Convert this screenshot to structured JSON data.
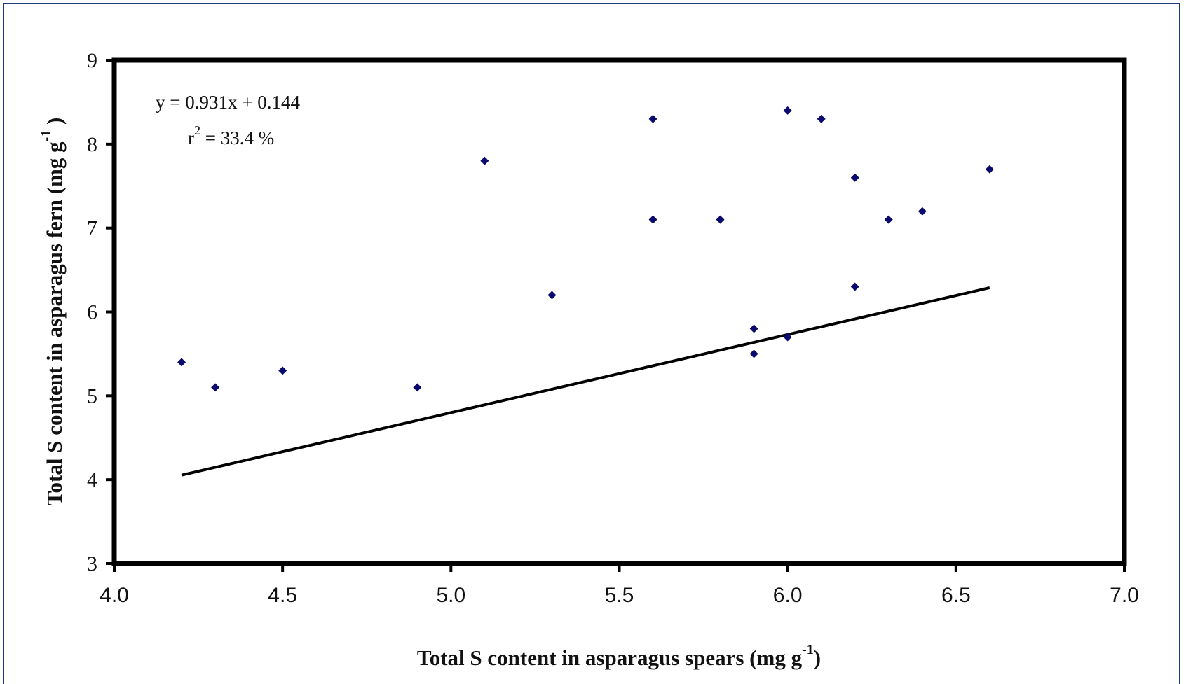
{
  "chart_data": {
    "type": "scatter",
    "title": "",
    "xlabel": "Total S content in asparagus spears (mg g",
    "xlabel_sup": "-1",
    "xlabel_end": ")",
    "ylabel": "Total S content in asparagus fern (mg g",
    "ylabel_sup": "-1",
    "ylabel_end": " )",
    "xlim": [
      4.0,
      7.0
    ],
    "ylim": [
      3,
      9
    ],
    "x_ticks": [
      "4.0",
      "4.5",
      "5.0",
      "5.5",
      "6.0",
      "6.5",
      "7.0"
    ],
    "y_ticks": [
      "3",
      "4",
      "5",
      "6",
      "7",
      "8",
      "9"
    ],
    "grid": false,
    "marker": "diamond",
    "marker_color": "#0a0a6e",
    "series": [
      {
        "x": [
          4.2,
          4.3,
          4.5,
          4.9,
          5.1,
          5.3,
          5.6,
          5.6,
          5.8,
          5.9,
          5.9,
          6.0,
          6.0,
          6.1,
          6.2,
          6.2,
          6.3,
          6.4,
          6.6
        ],
        "y": [
          5.4,
          5.1,
          5.3,
          5.1,
          7.8,
          6.2,
          8.3,
          7.1,
          7.1,
          5.8,
          5.5,
          8.4,
          5.7,
          8.3,
          7.6,
          6.3,
          7.1,
          7.2,
          7.7
        ]
      }
    ],
    "trendline": {
      "slope": 0.931,
      "intercept": 0.144,
      "x_range": [
        4.2,
        6.6
      ]
    },
    "annotations": {
      "equation": "y = 0.931x + 0.144",
      "r2_prefix": "r",
      "r2_sup": "2",
      "r2_rest": " = 33.4 %"
    }
  }
}
